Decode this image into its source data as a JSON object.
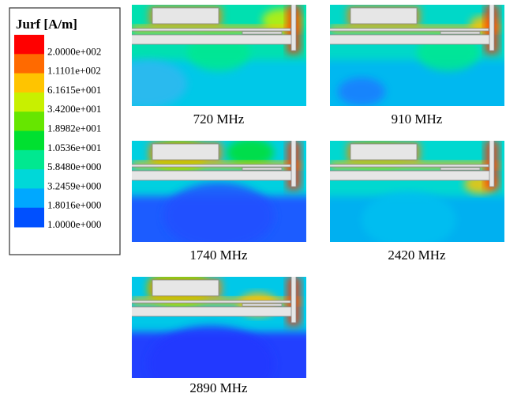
{
  "legend": {
    "title": "Jurf [A/m]",
    "entries": [
      {
        "label": "2.0000e+002",
        "color": "#ff0000"
      },
      {
        "label": "1.1101e+002",
        "color": "#ff6a00"
      },
      {
        "label": "6.1615e+001",
        "color": "#ffc400"
      },
      {
        "label": "3.4200e+001",
        "color": "#c8f000"
      },
      {
        "label": "1.8982e+001",
        "color": "#66e600"
      },
      {
        "label": "1.0536e+001",
        "color": "#00e030"
      },
      {
        "label": "5.8480e+000",
        "color": "#00e890"
      },
      {
        "label": "3.2459e+000",
        "color": "#00d8d8"
      },
      {
        "label": "1.8016e+000",
        "color": "#00a8ff"
      },
      {
        "label": "1.0000e+000",
        "color": "#0050ff"
      }
    ]
  },
  "panels": [
    {
      "caption": "720 MHz"
    },
    {
      "caption": "910 MHz"
    },
    {
      "caption": "1740 MHz"
    },
    {
      "caption": "2420 MHz"
    },
    {
      "caption": "2890 MHz"
    }
  ]
}
